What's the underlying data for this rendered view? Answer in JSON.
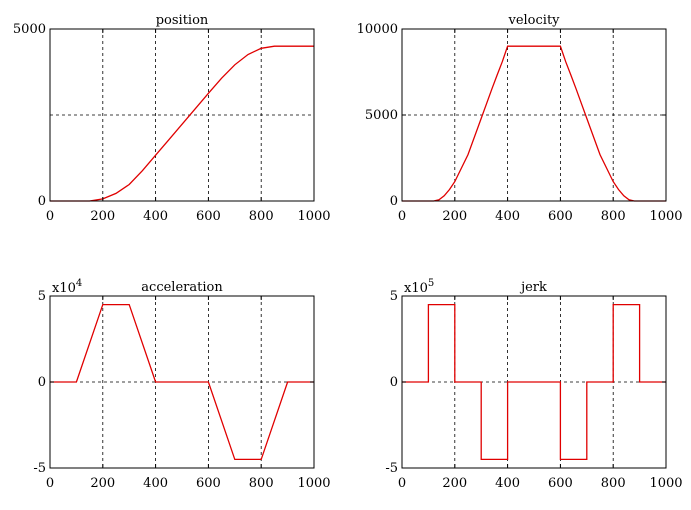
{
  "colors": {
    "curve": "#e00000",
    "axis": "#000000",
    "background": "#ffffff"
  },
  "chart_data": [
    {
      "type": "line",
      "title": "position",
      "multiplier": "",
      "xlim": [
        0,
        1000
      ],
      "ylim": [
        0,
        5000
      ],
      "xticks": [
        0,
        200,
        400,
        600,
        800,
        1000
      ],
      "yticks": [
        0,
        5000
      ],
      "ytick_labels": [
        "0",
        "5000"
      ],
      "xgrid": [
        200,
        400,
        600,
        800
      ],
      "ygrid": [
        2500
      ],
      "series": [
        {
          "x": [
            0,
            100,
            150,
            200,
            250,
            300,
            350,
            400,
            450,
            500,
            550,
            600,
            650,
            700,
            750,
            800,
            850,
            900,
            1000
          ],
          "y": [
            0,
            0,
            0,
            60,
            220,
            480,
            880,
            1330,
            1780,
            2230,
            2680,
            3130,
            3570,
            3960,
            4260,
            4440,
            4500,
            4500,
            4500
          ]
        }
      ]
    },
    {
      "type": "line",
      "title": "velocity",
      "multiplier": "",
      "xlim": [
        0,
        1000
      ],
      "ylim": [
        0,
        10000
      ],
      "xticks": [
        0,
        200,
        400,
        600,
        800,
        1000
      ],
      "yticks": [
        0,
        5000,
        10000
      ],
      "ytick_labels": [
        "0",
        "5000",
        "10000"
      ],
      "xgrid": [
        200,
        400,
        600,
        800
      ],
      "ygrid": [
        5000
      ],
      "series": [
        {
          "x": [
            0,
            100,
            120,
            140,
            160,
            180,
            200,
            250,
            300,
            320,
            340,
            360,
            380,
            400,
            600,
            620,
            640,
            660,
            680,
            700,
            750,
            800,
            820,
            840,
            860,
            880,
            900,
            1000
          ],
          "y": [
            0,
            0,
            0,
            70,
            300,
            670,
            1130,
            2700,
            4800,
            5650,
            6500,
            7300,
            8100,
            9000,
            9000,
            8100,
            7300,
            6500,
            5650,
            4800,
            2700,
            1130,
            670,
            300,
            70,
            0,
            0,
            0
          ]
        }
      ]
    },
    {
      "type": "line",
      "title": "acceleration",
      "multiplier": "x10",
      "multiplier_exp": "4",
      "xlim": [
        0,
        1000
      ],
      "ylim": [
        -5,
        5
      ],
      "xticks": [
        0,
        200,
        400,
        600,
        800,
        1000
      ],
      "yticks": [
        -5,
        0,
        5
      ],
      "ytick_labels": [
        "-5",
        "0",
        "5"
      ],
      "xgrid": [
        200,
        400,
        600,
        800
      ],
      "ygrid": [
        0
      ],
      "series": [
        {
          "x": [
            0,
            100,
            200,
            300,
            400,
            500,
            600,
            700,
            800,
            900,
            1000
          ],
          "y": [
            0,
            0,
            4.5,
            4.5,
            0,
            0,
            0,
            -4.5,
            -4.5,
            0,
            0
          ]
        }
      ]
    },
    {
      "type": "line",
      "title": "jerk",
      "multiplier": "x10",
      "multiplier_exp": "5",
      "xlim": [
        0,
        1000
      ],
      "ylim": [
        -5,
        5
      ],
      "xticks": [
        0,
        200,
        400,
        600,
        800,
        1000
      ],
      "yticks": [
        -5,
        0,
        5
      ],
      "ytick_labels": [
        "-5",
        "0",
        "5"
      ],
      "xgrid": [
        200,
        400,
        600,
        800
      ],
      "ygrid": [
        0
      ],
      "series": [
        {
          "x": [
            0,
            100,
            100,
            200,
            200,
            300,
            300,
            400,
            400,
            600,
            600,
            700,
            700,
            800,
            800,
            900,
            900,
            1000
          ],
          "y": [
            0,
            0,
            4.5,
            4.5,
            0,
            0,
            -4.5,
            -4.5,
            0,
            0,
            -4.5,
            -4.5,
            0,
            0,
            4.5,
            4.5,
            0,
            0
          ]
        }
      ]
    }
  ]
}
